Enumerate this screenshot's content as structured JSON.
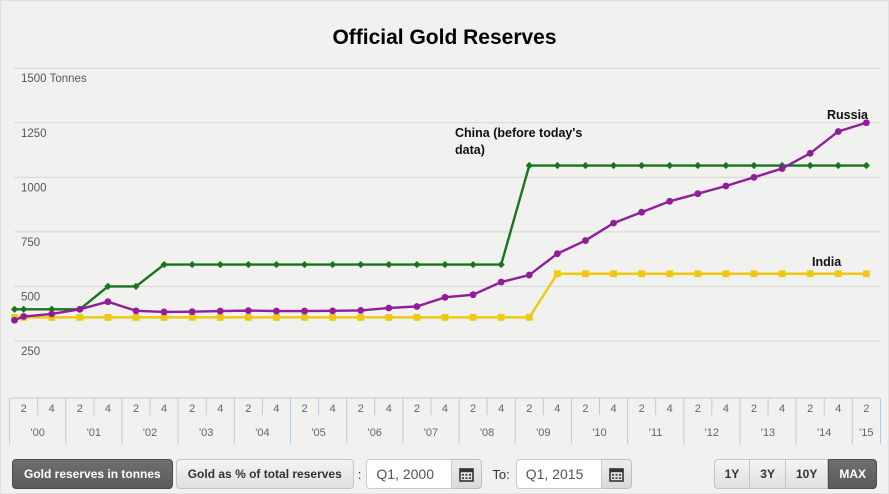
{
  "page": {
    "title": "Official Gold Reserves"
  },
  "chart_data": {
    "type": "line",
    "title": "Official Gold Reserves",
    "unit": "Tonnes",
    "ylim": [
      0,
      1500
    ],
    "grid": true,
    "legend_position": "inline-annotations",
    "yticks": [
      {
        "value": 1500,
        "label": "1500 Tonnes"
      },
      {
        "value": 1250,
        "label": "1250"
      },
      {
        "value": 1000,
        "label": "1000"
      },
      {
        "value": 750,
        "label": "750"
      },
      {
        "value": 500,
        "label": "500"
      },
      {
        "value": 250,
        "label": "250"
      }
    ],
    "x_labels": [
      "2000 Q1",
      "2000 Q2",
      "2000 Q4",
      "2001 Q2",
      "2001 Q4",
      "2002 Q2",
      "2002 Q4",
      "2003 Q2",
      "2003 Q4",
      "2004 Q2",
      "2004 Q4",
      "2005 Q2",
      "2005 Q4",
      "2006 Q2",
      "2006 Q4",
      "2007 Q2",
      "2007 Q4",
      "2008 Q2",
      "2008 Q4",
      "2009 Q2",
      "2009 Q4",
      "2010 Q2",
      "2010 Q4",
      "2011 Q2",
      "2011 Q4",
      "2012 Q2",
      "2012 Q4",
      "2013 Q2",
      "2013 Q4",
      "2014 Q2",
      "2014 Q4",
      "2015 Q2"
    ],
    "series": [
      {
        "name": "China",
        "annotation_lines": [
          "China (before today's",
          "data)"
        ],
        "color": "#17741d",
        "marker": "diamond",
        "values": [
          395,
          395,
          395,
          395,
          500,
          500,
          600,
          600,
          600,
          600,
          600,
          600,
          600,
          600,
          600,
          600,
          600,
          600,
          600,
          1054,
          1054,
          1054,
          1054,
          1054,
          1054,
          1054,
          1054,
          1054,
          1054,
          1054,
          1054,
          1054
        ]
      },
      {
        "name": "Russia",
        "annotation_lines": [
          "Russia"
        ],
        "color": "#901d9a",
        "marker": "circle",
        "values": [
          345,
          362,
          374,
          395,
          430,
          388,
          383,
          384,
          387,
          389,
          387,
          387,
          388,
          390,
          401,
          408,
          450,
          462,
          520,
          552,
          650,
          710,
          790,
          840,
          890,
          925,
          960,
          1000,
          1040,
          1110,
          1210,
          1250
        ]
      },
      {
        "name": "India",
        "annotation_lines": [
          "India"
        ],
        "color": "#eec911",
        "marker": "square",
        "values": [
          358,
          358,
          358,
          358,
          358,
          358,
          358,
          358,
          358,
          358,
          358,
          358,
          358,
          358,
          358,
          358,
          358,
          358,
          358,
          358,
          558,
          558,
          558,
          558,
          558,
          558,
          558,
          558,
          558,
          558,
          558,
          558
        ]
      }
    ],
    "x_axis": {
      "years": [
        {
          "label": "'00",
          "quarters": [
            "2",
            "4"
          ]
        },
        {
          "label": "'01",
          "quarters": [
            "2",
            "4"
          ]
        },
        {
          "label": "'02",
          "quarters": [
            "2",
            "4"
          ]
        },
        {
          "label": "'03",
          "quarters": [
            "2",
            "4"
          ]
        },
        {
          "label": "'04",
          "quarters": [
            "2",
            "4"
          ]
        },
        {
          "label": "'05",
          "quarters": [
            "2",
            "4"
          ]
        },
        {
          "label": "'06",
          "quarters": [
            "2",
            "4"
          ]
        },
        {
          "label": "'07",
          "quarters": [
            "2",
            "4"
          ]
        },
        {
          "label": "'08",
          "quarters": [
            "2",
            "4"
          ]
        },
        {
          "label": "'09",
          "quarters": [
            "2",
            "4"
          ]
        },
        {
          "label": "'10",
          "quarters": [
            "2",
            "4"
          ]
        },
        {
          "label": "'11",
          "quarters": [
            "2",
            "4"
          ]
        },
        {
          "label": "'12",
          "quarters": [
            "2",
            "4"
          ]
        },
        {
          "label": "'13",
          "quarters": [
            "2",
            "4"
          ]
        },
        {
          "label": "'14",
          "quarters": [
            "2",
            "4"
          ]
        },
        {
          "label": "'15",
          "quarters": [
            "2"
          ]
        }
      ]
    }
  },
  "toolbar": {
    "series_toggle": [
      {
        "label": "Gold reserves in tonnes",
        "active": true
      },
      {
        "label": "Gold as % of total reserves",
        "active": false
      }
    ],
    "from_label": ":",
    "from_value": "Q1, 2000",
    "to_label": "To:",
    "to_value": "Q1, 2015",
    "range_buttons": [
      {
        "label": "1Y",
        "active": false
      },
      {
        "label": "3Y",
        "active": false
      },
      {
        "label": "10Y",
        "active": false
      },
      {
        "label": "MAX",
        "active": true
      }
    ]
  },
  "colors": {
    "background": "#f1f1f0",
    "gridline": "#d5d5d5",
    "axis_line": "#c9c9c9",
    "tick": "#b9cbda",
    "axis_text": "#5c6670",
    "ytick_text": "#55585c",
    "annotation_text": "#101010"
  }
}
